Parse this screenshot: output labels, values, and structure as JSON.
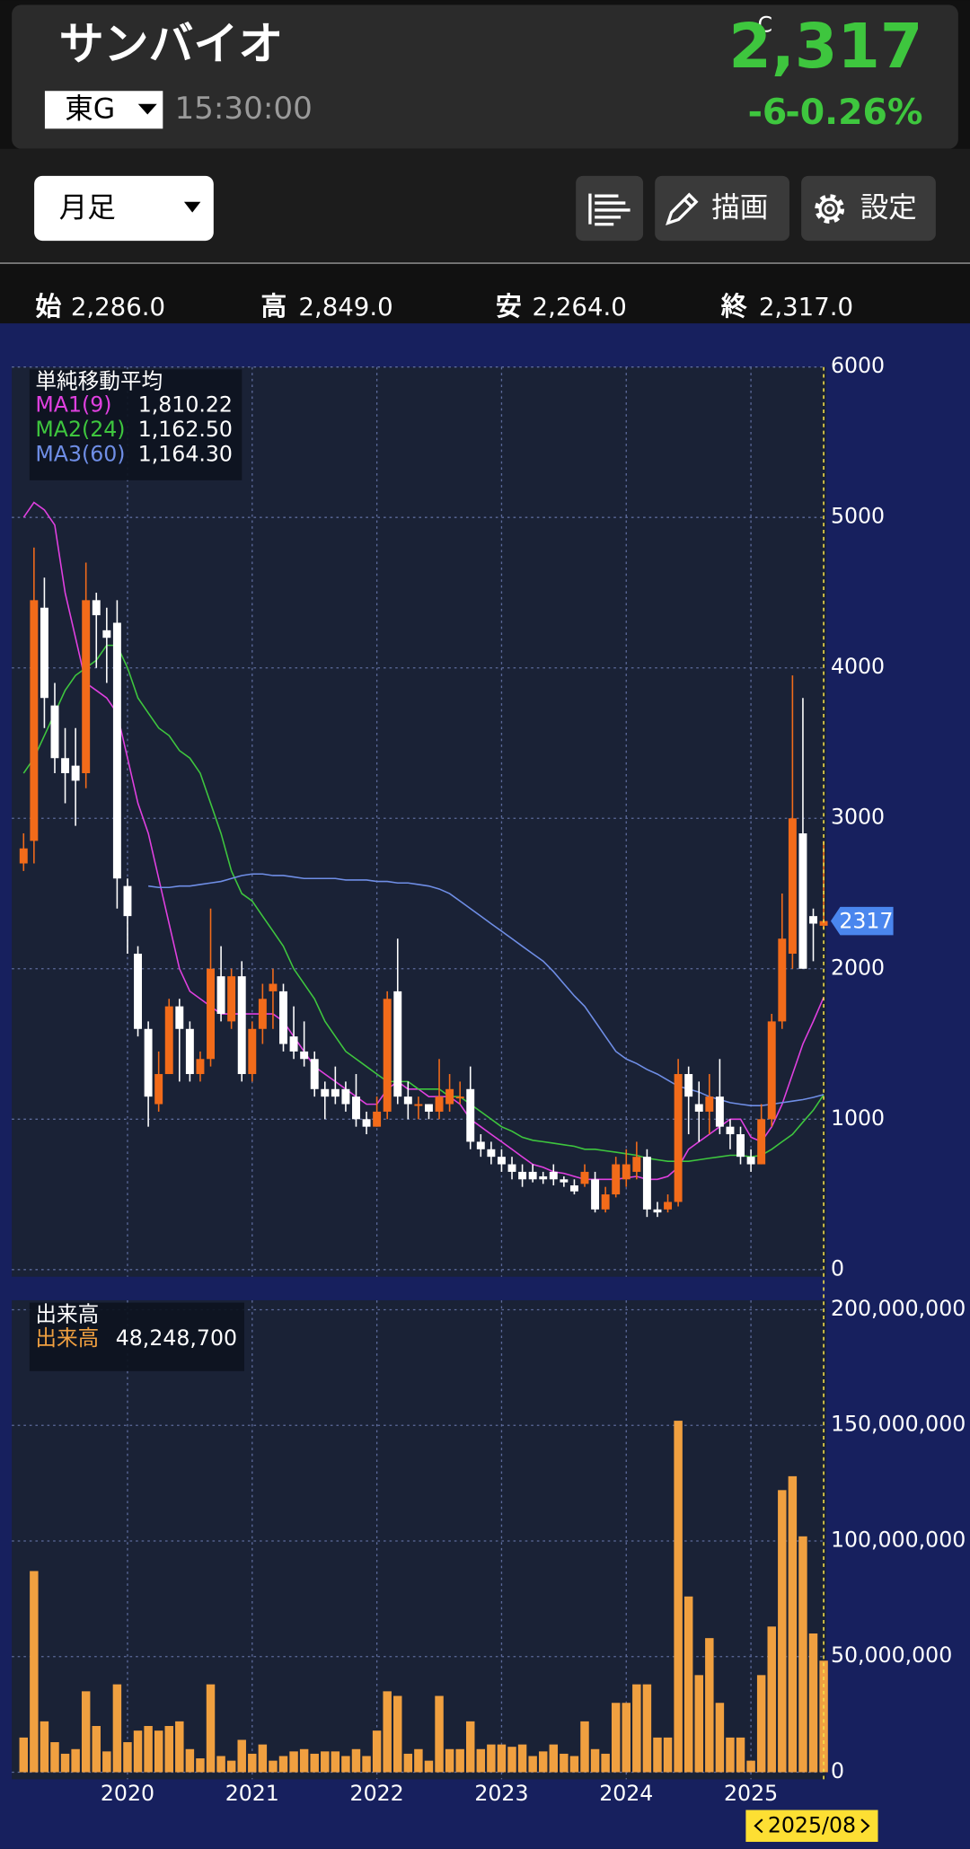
{
  "header": {
    "name": "サンバイオ",
    "market": "東G",
    "time": "15:30:00",
    "price_flag": "C",
    "price": "2,317",
    "change": "-6",
    "change_pct": "-0.26%"
  },
  "toolbar": {
    "period": "月足",
    "draw": "描画",
    "settings": "設定"
  },
  "ohlc": [
    {
      "label": "始",
      "value": "2,286.0"
    },
    {
      "label": "高",
      "value": "2,849.0"
    },
    {
      "label": "安",
      "value": "2,264.0"
    },
    {
      "label": "終",
      "value": "2,317.0"
    }
  ],
  "chart_data": {
    "type": "candlestick",
    "x": [
      "2019/03",
      "2019/04",
      "2019/05",
      "2019/06",
      "2019/07",
      "2019/08",
      "2019/09",
      "2019/10",
      "2019/11",
      "2019/12",
      "2020/01",
      "2020/02",
      "2020/03",
      "2020/04",
      "2020/05",
      "2020/06",
      "2020/07",
      "2020/08",
      "2020/09",
      "2020/10",
      "2020/11",
      "2020/12",
      "2021/01",
      "2021/02",
      "2021/03",
      "2021/04",
      "2021/05",
      "2021/06",
      "2021/07",
      "2021/08",
      "2021/09",
      "2021/10",
      "2021/11",
      "2021/12",
      "2022/01",
      "2022/02",
      "2022/03",
      "2022/04",
      "2022/05",
      "2022/06",
      "2022/07",
      "2022/08",
      "2022/09",
      "2022/10",
      "2022/11",
      "2022/12",
      "2023/01",
      "2023/02",
      "2023/03",
      "2023/04",
      "2023/05",
      "2023/06",
      "2023/07",
      "2023/08",
      "2023/09",
      "2023/10",
      "2023/11",
      "2023/12",
      "2024/01",
      "2024/02",
      "2024/03",
      "2024/04",
      "2024/05",
      "2024/06",
      "2024/07",
      "2024/08",
      "2024/09",
      "2024/10",
      "2024/11",
      "2024/12",
      "2025/01",
      "2025/02",
      "2025/03",
      "2025/04",
      "2025/05",
      "2025/06",
      "2025/07",
      "2025/08"
    ],
    "open": [
      2700,
      2850,
      4400,
      3750,
      3400,
      3350,
      3300,
      4450,
      4250,
      4300,
      2550,
      2100,
      1600,
      1100,
      1300,
      1750,
      1600,
      1300,
      1400,
      1950,
      1650,
      1950,
      1300,
      1600,
      1850,
      1850,
      1550,
      1450,
      1400,
      1200,
      1200,
      1200,
      1150,
      1000,
      950,
      1050,
      1850,
      1150,
      1100,
      1100,
      1050,
      1100,
      1150,
      1200,
      850,
      800,
      750,
      700,
      650,
      650,
      620,
      650,
      600,
      560,
      570,
      600,
      400,
      500,
      600,
      650,
      750,
      400,
      400,
      450,
      1300,
      1100,
      1050,
      1150,
      950,
      900,
      750,
      700,
      1000,
      1650,
      2100,
      2900,
      2350,
      2286
    ],
    "high": [
      2900,
      4800,
      4600,
      3900,
      3600,
      3600,
      4700,
      4500,
      4400,
      4450,
      2600,
      2150,
      1650,
      1450,
      1800,
      1800,
      1650,
      1450,
      2400,
      2150,
      2000,
      2050,
      1650,
      1900,
      2000,
      1900,
      1750,
      1650,
      1450,
      1250,
      1350,
      1250,
      1300,
      1050,
      1150,
      1850,
      2200,
      1250,
      1150,
      1100,
      1400,
      1300,
      1250,
      1350,
      900,
      850,
      800,
      750,
      700,
      700,
      650,
      700,
      620,
      600,
      700,
      650,
      550,
      750,
      800,
      850,
      800,
      450,
      500,
      1400,
      1350,
      1250,
      1300,
      1400,
      1000,
      950,
      800,
      1100,
      1700,
      2500,
      3950,
      3800,
      2400,
      2849
    ],
    "low": [
      2650,
      2700,
      3600,
      3300,
      3100,
      2950,
      3200,
      4000,
      3900,
      2400,
      2100,
      1550,
      950,
      1050,
      1300,
      1250,
      1250,
      1250,
      1350,
      1650,
      1600,
      1250,
      1250,
      1500,
      1600,
      1450,
      1400,
      1350,
      1150,
      1000,
      1100,
      1050,
      950,
      900,
      950,
      1000,
      1100,
      1000,
      1000,
      1000,
      1000,
      1050,
      1100,
      800,
      750,
      700,
      650,
      600,
      550,
      580,
      570,
      560,
      550,
      500,
      550,
      380,
      380,
      480,
      550,
      600,
      350,
      350,
      380,
      420,
      900,
      850,
      900,
      900,
      800,
      700,
      650,
      700,
      950,
      1600,
      2000,
      2000,
      2050,
      2264
    ],
    "close": [
      2800,
      4450,
      3800,
      3400,
      3300,
      3250,
      4450,
      4350,
      4200,
      2600,
      2350,
      1600,
      1150,
      1300,
      1750,
      1600,
      1300,
      1400,
      2000,
      1700,
      1950,
      1300,
      1600,
      1800,
      1900,
      1500,
      1450,
      1400,
      1200,
      1150,
      1150,
      1100,
      1000,
      950,
      1050,
      1800,
      1150,
      1100,
      1100,
      1050,
      1150,
      1200,
      1150,
      850,
      800,
      750,
      700,
      650,
      600,
      600,
      600,
      600,
      580,
      520,
      650,
      400,
      500,
      700,
      700,
      750,
      400,
      380,
      450,
      1300,
      1150,
      1050,
      1150,
      950,
      900,
      750,
      700,
      1000,
      1650,
      2200,
      3000,
      2000,
      2300,
      2317
    ],
    "up_color": "#f26b1a",
    "down_color": "#ffffff",
    "ylim": [
      0,
      6000
    ],
    "yticks": [
      0,
      1000,
      2000,
      3000,
      4000,
      5000,
      6000
    ],
    "xticks": [
      {
        "value": "2020/01",
        "label": "2020"
      },
      {
        "value": "2021/01",
        "label": "2021"
      },
      {
        "value": "2022/01",
        "label": "2022"
      },
      {
        "value": "2023/01",
        "label": "2023"
      },
      {
        "value": "2024/01",
        "label": "2024"
      },
      {
        "value": "2025/01",
        "label": "2025"
      }
    ],
    "grid": true,
    "ma_title": "単純移動平均",
    "series": [
      {
        "name": "MA1(9)",
        "color": "#e040e0",
        "legend_value": "1,810.22",
        "values": [
          5000,
          5100,
          5050,
          4950,
          4500,
          4200,
          3900,
          3850,
          3800,
          3700,
          3400,
          3100,
          2900,
          2600,
          2300,
          2000,
          1850,
          1800,
          1750,
          1700,
          1700,
          1700,
          1700,
          1700,
          1700,
          1650,
          1550,
          1450,
          1350,
          1300,
          1250,
          1200,
          1150,
          1100,
          1100,
          1200,
          1250,
          1200,
          1200,
          1150,
          1150,
          1150,
          1100,
          1000,
          950,
          900,
          850,
          800,
          750,
          700,
          680,
          650,
          640,
          620,
          600,
          600,
          600,
          600,
          610,
          620,
          600,
          600,
          620,
          680,
          800,
          850,
          900,
          950,
          1000,
          1000,
          880,
          850,
          950,
          1100,
          1300,
          1500,
          1650,
          1810.22
        ]
      },
      {
        "name": "MA2(24)",
        "color": "#3ec63e",
        "legend_value": "1,162.50",
        "values": [
          3300,
          3400,
          3550,
          3700,
          3850,
          3950,
          4000,
          4050,
          4150,
          4150,
          4000,
          3800,
          3700,
          3600,
          3550,
          3450,
          3400,
          3300,
          3100,
          2900,
          2650,
          2500,
          2450,
          2350,
          2250,
          2150,
          2000,
          1900,
          1800,
          1650,
          1550,
          1450,
          1400,
          1350,
          1300,
          1250,
          1250,
          1250,
          1200,
          1200,
          1200,
          1150,
          1150,
          1100,
          1050,
          1000,
          950,
          920,
          880,
          860,
          850,
          840,
          830,
          820,
          800,
          800,
          790,
          780,
          770,
          760,
          740,
          730,
          720,
          720,
          720,
          730,
          740,
          750,
          760,
          760,
          750,
          760,
          800,
          850,
          900,
          980,
          1060,
          1162.5
        ]
      },
      {
        "name": "MA3(60)",
        "color": "#6f8ee6",
        "legend_value": "1,164.30",
        "values": [
          null,
          null,
          null,
          null,
          null,
          null,
          null,
          null,
          null,
          null,
          null,
          null,
          2550,
          2540,
          2540,
          2550,
          2550,
          2560,
          2570,
          2580,
          2600,
          2620,
          2630,
          2630,
          2620,
          2620,
          2610,
          2600,
          2600,
          2600,
          2600,
          2590,
          2590,
          2590,
          2580,
          2580,
          2570,
          2570,
          2560,
          2550,
          2530,
          2500,
          2450,
          2400,
          2350,
          2300,
          2250,
          2200,
          2150,
          2100,
          2050,
          1980,
          1900,
          1820,
          1750,
          1650,
          1550,
          1450,
          1400,
          1370,
          1330,
          1300,
          1260,
          1220,
          1200,
          1180,
          1150,
          1130,
          1110,
          1100,
          1090,
          1090,
          1100,
          1110,
          1120,
          1130,
          1145,
          1164.3
        ]
      }
    ],
    "volume": {
      "title": "出来高",
      "name": "出来高",
      "color": "#f0a040",
      "legend_value": "48,248,700",
      "values": [
        15000000,
        87000000,
        22000000,
        13000000,
        8000000,
        10000000,
        35000000,
        20000000,
        9000000,
        38000000,
        13000000,
        18000000,
        20000000,
        18000000,
        20000000,
        22000000,
        10000000,
        6000000,
        38000000,
        7000000,
        5000000,
        14000000,
        8000000,
        12000000,
        5000000,
        7000000,
        9000000,
        10000000,
        8000000,
        9000000,
        9000000,
        7000000,
        10000000,
        7000000,
        18000000,
        35000000,
        33000000,
        8000000,
        10000000,
        5000000,
        33000000,
        10000000,
        10000000,
        22000000,
        10000000,
        12000000,
        12000000,
        11000000,
        12000000,
        7000000,
        9000000,
        12000000,
        8000000,
        7000000,
        22000000,
        10000000,
        8000000,
        30000000,
        30000000,
        38000000,
        38000000,
        15000000,
        15000000,
        152000000,
        76000000,
        42000000,
        58000000,
        30000000,
        15000000,
        15000000,
        5000000,
        42000000,
        63000000,
        122000000,
        128000000,
        102000000,
        60000000,
        48248700
      ],
      "ylim": [
        0,
        200000000
      ],
      "yticks": [
        {
          "value": 0,
          "label": "0"
        },
        {
          "value": 50000000,
          "label": "50,000,000"
        },
        {
          "value": 100000000,
          "label": "100,000,000"
        },
        {
          "value": 150000000,
          "label": "150,000,000"
        },
        {
          "value": 200000000,
          "label": "200,000,000"
        }
      ]
    }
  }
}
